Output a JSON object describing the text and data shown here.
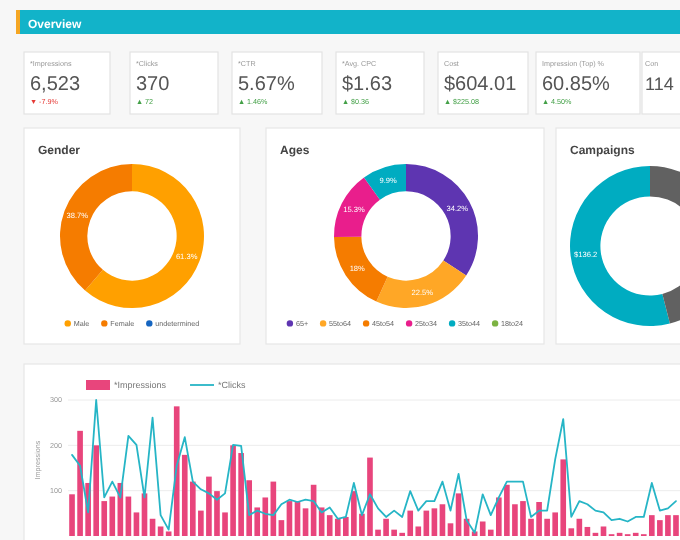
{
  "chart_data": [
    {
      "type": "other",
      "title": "Overview",
      "annotations": [
        "*Impressions",
        "6,523",
        "▼ -7.9%",
        "*Clicks",
        "370",
        "▲ 72",
        "*CTR",
        "5.67%",
        "▲ 1.46%",
        "*Avg. CPC",
        "$1.63",
        "▲ $0.36",
        "Cost",
        "$604.01",
        "▲ $225.08",
        "Impression (Top) %",
        "60.85%",
        "▲ 4.50%",
        "Con",
        "114"
      ],
      "colors": [
        "#e53935",
        "#43a047",
        "#43a047",
        "#43a047",
        "#43a047",
        "#43a047"
      ]
    },
    {
      "type": "donut",
      "title": "Gender",
      "categories": [
        "Male",
        "Female",
        "undetermined"
      ],
      "values": [
        61.3,
        38.7,
        0
      ],
      "colors": [
        "#ffa000",
        "#f57c00",
        "#1565c0"
      ],
      "value_labels": [
        "61.3%",
        "38.7%",
        null
      ],
      "legend": "bottom"
    },
    {
      "type": "donut",
      "title": "Ages",
      "categories": [
        "65+",
        "55to64",
        "45to54",
        "25to34",
        "35to44",
        "18to24"
      ],
      "values": [
        34.2,
        22.5,
        18,
        15.3,
        9.9,
        0
      ],
      "colors": [
        "#5e35b1",
        "#ffa726",
        "#f57c00",
        "#e91e8c",
        "#00acc1",
        "#7cb342"
      ],
      "value_labels": [
        "34.2%",
        "22.5%",
        "18%",
        "15.3%",
        "9.9%",
        null
      ],
      "legend": "bottom"
    },
    {
      "type": "donut",
      "title": "Campaigns",
      "categories": [
        null,
        null
      ],
      "values": [
        136.2,
        116
      ],
      "colors": [
        "#00acc1",
        "#616161"
      ],
      "value_labels": [
        "$136.2",
        null
      ]
    },
    {
      "type": "bar",
      "categories": [
        null,
        null,
        null,
        null,
        null,
        null,
        null,
        null,
        null,
        null,
        null,
        null,
        null,
        null,
        null,
        null,
        null,
        null,
        null,
        null,
        null,
        null,
        null,
        null,
        null,
        null,
        null,
        null,
        null,
        null,
        null,
        null,
        null,
        null,
        null,
        null,
        null,
        null,
        null,
        null,
        null,
        null,
        null,
        null,
        null,
        null,
        null,
        null,
        null,
        null,
        null,
        null,
        null,
        null,
        null,
        null,
        null,
        null,
        null,
        null,
        null,
        null,
        null,
        null,
        null,
        null,
        null,
        null,
        null,
        null,
        null,
        null,
        null,
        null,
        null,
        null
      ],
      "series": [
        {
          "name": "*Impressions",
          "type": "bar",
          "color": "#e8457c",
          "values": [
            92,
            232,
            117,
            200,
            77,
            87,
            117,
            87,
            52,
            94,
            38,
            21,
            10,
            286,
            179,
            120,
            56,
            131,
            99,
            52,
            200,
            183,
            123,
            63,
            85,
            120,
            35,
            77,
            77,
            61,
            113,
            63,
            46,
            38,
            42,
            99,
            49,
            173,
            14,
            38,
            14,
            7,
            56,
            21,
            56,
            61,
            70,
            28,
            94,
            38,
            10,
            32,
            14,
            85,
            113,
            70,
            77,
            38,
            75,
            38,
            52,
            169,
            17,
            38,
            20,
            7,
            21,
            4,
            7,
            4,
            7,
            4,
            46,
            35,
            46,
            46
          ]
        },
        {
          "name": "*Clicks",
          "type": "line",
          "color": "#26b5c6",
          "values": [
            179,
            155,
            52,
            300,
            85,
            120,
            85,
            221,
            201,
            85,
            261,
            46,
            14,
            155,
            218,
            120,
            103,
            94,
            80,
            94,
            201,
            199,
            46,
            56,
            49,
            46,
            70,
            80,
            75,
            80,
            77,
            52,
            63,
            38,
            42,
            117,
            46,
            92,
            61,
            42,
            56,
            42,
            99,
            56,
            77,
            77,
            120,
            56,
            137,
            35,
            7,
            92,
            46,
            85,
            120,
            120,
            120,
            42,
            56,
            56,
            169,
            258,
            42,
            77,
            70,
            56,
            52,
            35,
            38,
            32,
            42,
            42,
            117,
            56,
            61,
            77
          ]
        }
      ],
      "ylabel": "Impressions",
      "ylim": [
        0,
        300
      ],
      "yticks": [
        100,
        200,
        300
      ],
      "grid": "y",
      "legend": "top left"
    }
  ]
}
